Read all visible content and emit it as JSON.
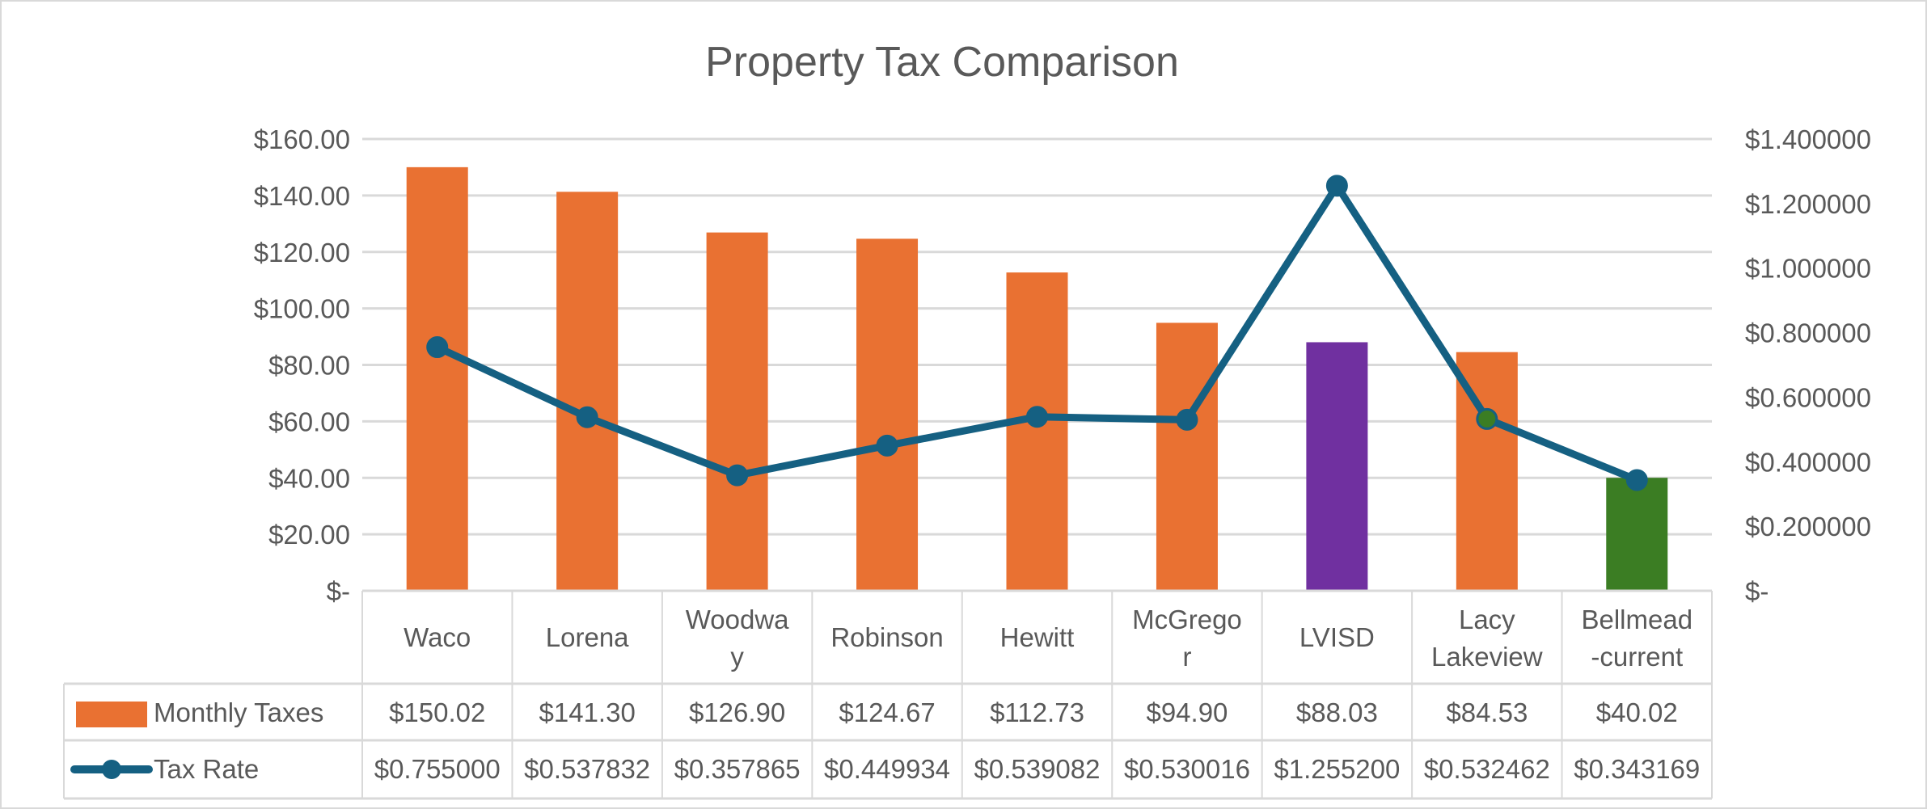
{
  "chart_data": {
    "type": "bar+line",
    "title": "Property Tax Comparison",
    "categories": [
      "Waco",
      "Lorena",
      "Woodway",
      "Robinson",
      "Hewitt",
      "McGregor",
      "LVISD",
      "Lacy Lakeview",
      "Bellmead-current"
    ],
    "series": [
      {
        "name": "Monthly Taxes",
        "kind": "bar",
        "axis": "left",
        "values": [
          150.02,
          141.3,
          126.9,
          124.67,
          112.73,
          94.9,
          88.03,
          84.53,
          40.02
        ],
        "labels": [
          "$150.02",
          "$141.30",
          "$126.90",
          "$124.67",
          "$112.73",
          "$94.90",
          "$88.03",
          "$84.53",
          "$40.02"
        ],
        "color": "#E97132",
        "point_colors": [
          "#E97132",
          "#E97132",
          "#E97132",
          "#E97132",
          "#E97132",
          "#E97132",
          "#7030A0",
          "#E97132",
          "#3B7D23"
        ]
      },
      {
        "name": "Tax Rate",
        "kind": "line",
        "axis": "right",
        "values": [
          0.755,
          0.537832,
          0.357865,
          0.449934,
          0.539082,
          0.530016,
          1.2552,
          0.532462,
          0.343169
        ],
        "labels": [
          "$0.755000",
          "$0.537832",
          "$0.357865",
          "$0.449934",
          "$0.539082",
          "$0.530016",
          "$1.255200",
          "$0.532462",
          "$0.343169"
        ],
        "color": "#156082",
        "marker_colors": [
          "#156082",
          "#156082",
          "#156082",
          "#156082",
          "#156082",
          "#156082",
          "#156082",
          "#3B7D23",
          "#156082"
        ]
      }
    ],
    "left_axis": {
      "ylim": [
        0,
        160
      ],
      "ticks": [
        "$-",
        "$20.00",
        "$40.00",
        "$60.00",
        "$80.00",
        "$100.00",
        "$120.00",
        "$140.00",
        "$160.00"
      ]
    },
    "right_axis": {
      "ylim": [
        0,
        1.4
      ],
      "ticks": [
        "$-",
        "$0.200000",
        "$0.400000",
        "$0.600000",
        "$0.800000",
        "$1.000000",
        "$1.200000",
        "$1.400000"
      ]
    },
    "grid": true,
    "legend": "data-table",
    "grid_color": "#D9D9D9"
  }
}
